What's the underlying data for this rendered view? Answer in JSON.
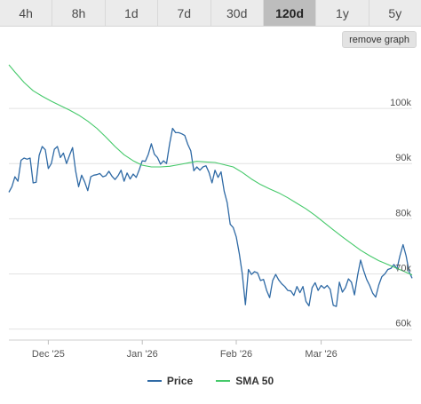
{
  "tabs": [
    {
      "label": "4h",
      "active": false
    },
    {
      "label": "8h",
      "active": false
    },
    {
      "label": "1d",
      "active": false
    },
    {
      "label": "7d",
      "active": false
    },
    {
      "label": "30d",
      "active": false
    },
    {
      "label": "120d",
      "active": true
    },
    {
      "label": "1y",
      "active": false
    },
    {
      "label": "5y",
      "active": false
    }
  ],
  "remove_graph_label": "remove graph",
  "colors": {
    "price": "#2f6aa5",
    "sma": "#45c96a",
    "grid": "#e2e2e2"
  },
  "chart_data": {
    "type": "line",
    "x_axis": {
      "type": "date",
      "range": [
        "2025-11-18",
        "2026-03-31"
      ],
      "ticks": [
        {
          "date": "2025-12-01",
          "label": "Dec '25"
        },
        {
          "date": "2026-01-01",
          "label": "Jan '26"
        },
        {
          "date": "2026-02-01",
          "label": "Feb '26"
        },
        {
          "date": "2026-03-01",
          "label": "Mar '26"
        }
      ]
    },
    "y_axis": {
      "range": [
        58000,
        110000
      ],
      "ticks": [
        {
          "value": 60000,
          "label": "60k"
        },
        {
          "value": 70000,
          "label": "70k"
        },
        {
          "value": 80000,
          "label": "80k"
        },
        {
          "value": 90000,
          "label": "90k"
        },
        {
          "value": 100000,
          "label": "100k"
        }
      ],
      "position": "right",
      "grid": true
    },
    "legend": "bottom-center",
    "series": [
      {
        "name": "Price",
        "color": "#2f6aa5",
        "points": [
          [
            "2025-11-18",
            84800
          ],
          [
            "2025-11-19",
            85800
          ],
          [
            "2025-11-20",
            87600
          ],
          [
            "2025-11-21",
            86800
          ],
          [
            "2025-11-22",
            90600
          ],
          [
            "2025-11-23",
            91000
          ],
          [
            "2025-11-24",
            90800
          ],
          [
            "2025-11-25",
            91000
          ],
          [
            "2025-11-26",
            86500
          ],
          [
            "2025-11-27",
            86600
          ],
          [
            "2025-11-28",
            91500
          ],
          [
            "2025-11-29",
            93100
          ],
          [
            "2025-11-30",
            92500
          ],
          [
            "2025-12-01",
            89100
          ],
          [
            "2025-12-02",
            90000
          ],
          [
            "2025-12-03",
            92600
          ],
          [
            "2025-12-04",
            93100
          ],
          [
            "2025-12-05",
            91100
          ],
          [
            "2025-12-06",
            91900
          ],
          [
            "2025-12-07",
            90000
          ],
          [
            "2025-12-08",
            91500
          ],
          [
            "2025-12-09",
            92900
          ],
          [
            "2025-12-10",
            88700
          ],
          [
            "2025-12-11",
            85800
          ],
          [
            "2025-12-12",
            87900
          ],
          [
            "2025-12-13",
            86700
          ],
          [
            "2025-12-14",
            85100
          ],
          [
            "2025-12-15",
            87600
          ],
          [
            "2025-12-16",
            87900
          ],
          [
            "2025-12-17",
            88000
          ],
          [
            "2025-12-18",
            88200
          ],
          [
            "2025-12-19",
            87600
          ],
          [
            "2025-12-20",
            87800
          ],
          [
            "2025-12-21",
            88600
          ],
          [
            "2025-12-22",
            87700
          ],
          [
            "2025-12-23",
            87100
          ],
          [
            "2025-12-24",
            87800
          ],
          [
            "2025-12-25",
            88800
          ],
          [
            "2025-12-26",
            86800
          ],
          [
            "2025-12-27",
            88300
          ],
          [
            "2025-12-28",
            87200
          ],
          [
            "2025-12-29",
            88100
          ],
          [
            "2025-12-30",
            87500
          ],
          [
            "2025-12-31",
            88900
          ],
          [
            "2026-01-01",
            90500
          ],
          [
            "2026-01-02",
            90400
          ],
          [
            "2026-01-03",
            91700
          ],
          [
            "2026-01-04",
            93600
          ],
          [
            "2026-01-05",
            91700
          ],
          [
            "2026-01-06",
            91100
          ],
          [
            "2026-01-07",
            89900
          ],
          [
            "2026-01-08",
            90500
          ],
          [
            "2026-01-09",
            90000
          ],
          [
            "2026-01-10",
            93500
          ],
          [
            "2026-01-11",
            96400
          ],
          [
            "2026-01-12",
            95600
          ],
          [
            "2026-01-13",
            95600
          ],
          [
            "2026-01-14",
            95400
          ],
          [
            "2026-01-15",
            95100
          ],
          [
            "2026-01-16",
            93500
          ],
          [
            "2026-01-17",
            92300
          ],
          [
            "2026-01-18",
            88700
          ],
          [
            "2026-01-19",
            89400
          ],
          [
            "2026-01-20",
            88800
          ],
          [
            "2026-01-21",
            89400
          ],
          [
            "2026-01-22",
            89600
          ],
          [
            "2026-01-23",
            88400
          ],
          [
            "2026-01-24",
            86500
          ],
          [
            "2026-01-25",
            88800
          ],
          [
            "2026-01-26",
            87500
          ],
          [
            "2026-01-27",
            88500
          ],
          [
            "2026-01-28",
            85000
          ],
          [
            "2026-01-29",
            82900
          ],
          [
            "2026-01-30",
            79000
          ],
          [
            "2026-01-31",
            78400
          ],
          [
            "2026-02-01",
            76700
          ],
          [
            "2026-02-02",
            73700
          ],
          [
            "2026-02-03",
            70000
          ],
          [
            "2026-02-04",
            64400
          ],
          [
            "2026-02-05",
            70800
          ],
          [
            "2026-02-06",
            69900
          ],
          [
            "2026-02-07",
            70400
          ],
          [
            "2026-02-08",
            70200
          ],
          [
            "2026-02-09",
            68800
          ],
          [
            "2026-02-10",
            69000
          ],
          [
            "2026-02-11",
            67000
          ],
          [
            "2026-02-12",
            65700
          ],
          [
            "2026-02-13",
            68800
          ],
          [
            "2026-02-14",
            69900
          ],
          [
            "2026-02-15",
            68900
          ],
          [
            "2026-02-16",
            68200
          ],
          [
            "2026-02-17",
            67700
          ],
          [
            "2026-02-18",
            67000
          ],
          [
            "2026-02-19",
            66900
          ],
          [
            "2026-02-20",
            66100
          ],
          [
            "2026-02-21",
            67700
          ],
          [
            "2026-02-22",
            66600
          ],
          [
            "2026-02-23",
            67700
          ],
          [
            "2026-02-24",
            65000
          ],
          [
            "2026-02-25",
            64200
          ],
          [
            "2026-02-26",
            67500
          ],
          [
            "2026-02-27",
            68400
          ],
          [
            "2026-02-28",
            67000
          ],
          [
            "2026-03-01",
            67900
          ],
          [
            "2026-03-02",
            67400
          ],
          [
            "2026-03-03",
            67900
          ],
          [
            "2026-03-04",
            67200
          ],
          [
            "2026-03-05",
            64300
          ],
          [
            "2026-03-06",
            64100
          ],
          [
            "2026-03-07",
            68500
          ],
          [
            "2026-03-08",
            66700
          ],
          [
            "2026-03-09",
            67500
          ],
          [
            "2026-03-10",
            69100
          ],
          [
            "2026-03-11",
            68500
          ],
          [
            "2026-03-12",
            66200
          ],
          [
            "2026-03-13",
            69700
          ],
          [
            "2026-03-14",
            72500
          ],
          [
            "2026-03-15",
            70600
          ],
          [
            "2026-03-16",
            69000
          ],
          [
            "2026-03-17",
            67900
          ],
          [
            "2026-03-18",
            66500
          ],
          [
            "2026-03-19",
            65800
          ],
          [
            "2026-03-20",
            68000
          ],
          [
            "2026-03-21",
            69500
          ],
          [
            "2026-03-22",
            70000
          ],
          [
            "2026-03-23",
            70800
          ],
          [
            "2026-03-24",
            71000
          ],
          [
            "2026-03-25",
            71700
          ],
          [
            "2026-03-26",
            70900
          ],
          [
            "2026-03-27",
            73300
          ],
          [
            "2026-03-28",
            75300
          ],
          [
            "2026-03-29",
            73300
          ],
          [
            "2026-03-30",
            70400
          ],
          [
            "2026-03-31",
            69200
          ]
        ]
      },
      {
        "name": "SMA 50",
        "color": "#45c96a",
        "points": [
          [
            "2025-11-18",
            107900
          ],
          [
            "2025-11-20",
            106600
          ],
          [
            "2025-11-23",
            104700
          ],
          [
            "2025-11-26",
            103200
          ],
          [
            "2025-11-29",
            102200
          ],
          [
            "2025-12-02",
            101300
          ],
          [
            "2025-12-05",
            100500
          ],
          [
            "2025-12-08",
            99700
          ],
          [
            "2025-12-11",
            98800
          ],
          [
            "2025-12-14",
            97700
          ],
          [
            "2025-12-17",
            96400
          ],
          [
            "2025-12-20",
            94800
          ],
          [
            "2025-12-23",
            93100
          ],
          [
            "2025-12-26",
            91600
          ],
          [
            "2025-12-29",
            90500
          ],
          [
            "2026-01-01",
            89700
          ],
          [
            "2026-01-04",
            89400
          ],
          [
            "2026-01-07",
            89400
          ],
          [
            "2026-01-10",
            89500
          ],
          [
            "2026-01-13",
            89800
          ],
          [
            "2026-01-16",
            90100
          ],
          [
            "2026-01-19",
            90400
          ],
          [
            "2026-01-22",
            90300
          ],
          [
            "2026-01-25",
            90200
          ],
          [
            "2026-01-28",
            89800
          ],
          [
            "2026-01-31",
            89400
          ],
          [
            "2026-02-03",
            88400
          ],
          [
            "2026-02-06",
            87200
          ],
          [
            "2026-02-09",
            86200
          ],
          [
            "2026-02-12",
            85400
          ],
          [
            "2026-02-15",
            84700
          ],
          [
            "2026-02-18",
            83800
          ],
          [
            "2026-02-21",
            82800
          ],
          [
            "2026-02-24",
            81800
          ],
          [
            "2026-02-27",
            80600
          ],
          [
            "2026-03-02",
            79300
          ],
          [
            "2026-03-05",
            78000
          ],
          [
            "2026-03-08",
            76700
          ],
          [
            "2026-03-11",
            75500
          ],
          [
            "2026-03-14",
            74300
          ],
          [
            "2026-03-17",
            73300
          ],
          [
            "2026-03-20",
            72400
          ],
          [
            "2026-03-23",
            71700
          ],
          [
            "2026-03-26",
            71000
          ],
          [
            "2026-03-29",
            70300
          ],
          [
            "2026-03-31",
            69800
          ]
        ]
      }
    ]
  }
}
